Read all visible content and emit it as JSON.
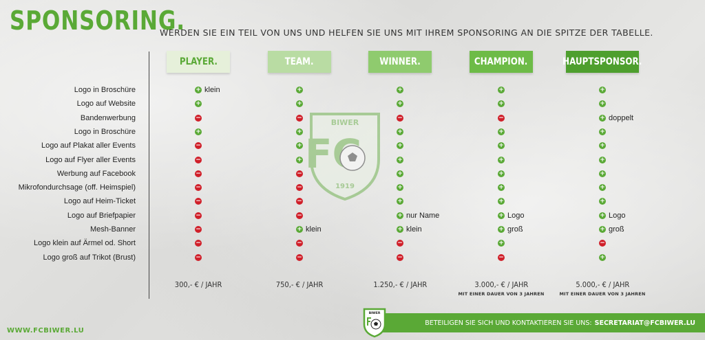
{
  "header": {
    "title": "SPONSORING.",
    "tagline": "WERDEN SIE EIN TEIL VON UNS UND HELFEN SIE UNS MIT IHREM SPONSORING AN DIE SPITZE DER TABELLE."
  },
  "packages": [
    {
      "name": "PLAYER.",
      "bg": "#e6f0da",
      "fg": "#5aa936"
    },
    {
      "name": "TEAM.",
      "bg": "#b9dca3",
      "fg": "#ffffff"
    },
    {
      "name": "WINNER.",
      "bg": "#8fcb6e",
      "fg": "#ffffff"
    },
    {
      "name": "CHAMPION.",
      "bg": "#6dbb47",
      "fg": "#ffffff"
    },
    {
      "name": "HAUPTSPONSOR.",
      "bg": "#4e9f2e",
      "fg": "#ffffff"
    }
  ],
  "rows": [
    {
      "label": "Logo in Broschüre",
      "cells": [
        {
          "i": "plus",
          "t": "klein"
        },
        {
          "i": "plus",
          "t": ""
        },
        {
          "i": "plus",
          "t": ""
        },
        {
          "i": "plus",
          "t": ""
        },
        {
          "i": "plus",
          "t": ""
        }
      ]
    },
    {
      "label": "Logo auf Website",
      "cells": [
        {
          "i": "plus",
          "t": ""
        },
        {
          "i": "plus",
          "t": ""
        },
        {
          "i": "plus",
          "t": ""
        },
        {
          "i": "plus",
          "t": ""
        },
        {
          "i": "plus",
          "t": ""
        }
      ]
    },
    {
      "label": "Bandenwerbung",
      "cells": [
        {
          "i": "minus",
          "t": ""
        },
        {
          "i": "minus",
          "t": ""
        },
        {
          "i": "minus",
          "t": ""
        },
        {
          "i": "minus",
          "t": ""
        },
        {
          "i": "plus",
          "t": "doppelt"
        }
      ]
    },
    {
      "label": "Logo in Broschüre",
      "cells": [
        {
          "i": "plus",
          "t": ""
        },
        {
          "i": "plus",
          "t": ""
        },
        {
          "i": "plus",
          "t": ""
        },
        {
          "i": "plus",
          "t": ""
        },
        {
          "i": "plus",
          "t": ""
        }
      ]
    },
    {
      "label": "Logo auf Plakat aller Events",
      "cells": [
        {
          "i": "minus",
          "t": ""
        },
        {
          "i": "plus",
          "t": ""
        },
        {
          "i": "plus",
          "t": ""
        },
        {
          "i": "plus",
          "t": ""
        },
        {
          "i": "plus",
          "t": ""
        }
      ]
    },
    {
      "label": "Logo auf Flyer aller Events",
      "cells": [
        {
          "i": "minus",
          "t": ""
        },
        {
          "i": "plus",
          "t": ""
        },
        {
          "i": "plus",
          "t": ""
        },
        {
          "i": "plus",
          "t": ""
        },
        {
          "i": "plus",
          "t": ""
        }
      ]
    },
    {
      "label": "Werbung auf Facebook",
      "cells": [
        {
          "i": "minus",
          "t": ""
        },
        {
          "i": "minus",
          "t": ""
        },
        {
          "i": "plus",
          "t": ""
        },
        {
          "i": "plus",
          "t": ""
        },
        {
          "i": "plus",
          "t": ""
        }
      ]
    },
    {
      "label": "Mikrofondurchsage (off. Heimspiel)",
      "cells": [
        {
          "i": "minus",
          "t": ""
        },
        {
          "i": "minus",
          "t": ""
        },
        {
          "i": "plus",
          "t": ""
        },
        {
          "i": "plus",
          "t": ""
        },
        {
          "i": "plus",
          "t": ""
        }
      ]
    },
    {
      "label": "Logo auf Heim-Ticket",
      "cells": [
        {
          "i": "minus",
          "t": ""
        },
        {
          "i": "minus",
          "t": ""
        },
        {
          "i": "plus",
          "t": ""
        },
        {
          "i": "plus",
          "t": ""
        },
        {
          "i": "plus",
          "t": ""
        }
      ]
    },
    {
      "label": "Logo auf Briefpapier",
      "cells": [
        {
          "i": "minus",
          "t": ""
        },
        {
          "i": "minus",
          "t": ""
        },
        {
          "i": "plus",
          "t": "nur Name"
        },
        {
          "i": "plus",
          "t": "Logo"
        },
        {
          "i": "plus",
          "t": "Logo"
        }
      ]
    },
    {
      "label": "Mesh-Banner",
      "cells": [
        {
          "i": "minus",
          "t": ""
        },
        {
          "i": "plus",
          "t": "klein"
        },
        {
          "i": "plus",
          "t": "klein"
        },
        {
          "i": "plus",
          "t": "groß"
        },
        {
          "i": "plus",
          "t": "groß"
        }
      ]
    },
    {
      "label": "Logo klein auf Ärmel od. Short",
      "cells": [
        {
          "i": "minus",
          "t": ""
        },
        {
          "i": "minus",
          "t": ""
        },
        {
          "i": "minus",
          "t": ""
        },
        {
          "i": "plus",
          "t": ""
        },
        {
          "i": "minus",
          "t": ""
        }
      ]
    },
    {
      "label": "Logo groß auf Trikot (Brust)",
      "cells": [
        {
          "i": "minus",
          "t": ""
        },
        {
          "i": "minus",
          "t": ""
        },
        {
          "i": "minus",
          "t": ""
        },
        {
          "i": "minus",
          "t": ""
        },
        {
          "i": "plus",
          "t": ""
        }
      ]
    }
  ],
  "prices": [
    {
      "price": "300,- € / JAHR",
      "note": ""
    },
    {
      "price": "750,- € / JAHR",
      "note": ""
    },
    {
      "price": "1.250,- € / JAHR",
      "note": ""
    },
    {
      "price": "3.000,- € / JAHR",
      "note": "MIT EINER DAUER VON 3 JAHREN"
    },
    {
      "price": "5.000,- € / JAHR",
      "note": "MIT EINER DAUER VON 3 JAHREN"
    }
  ],
  "crest": {
    "top_text": "BIWER",
    "letters": "FC",
    "year": "1919"
  },
  "footer": {
    "contact_text": "BETEILIGEN SIE SICH UND KONTAKTIEREN SIE UNS:",
    "email": "SECRETARIAT@FCBIWER.LU",
    "website": "WWW.FCBIWER.LU",
    "crest_label": "BIWER"
  },
  "colors": {
    "brand_green": "#5aa936",
    "minus_red": "#d0202a"
  },
  "icons": {
    "plus": "plus-circle-icon",
    "minus": "minus-circle-icon"
  }
}
